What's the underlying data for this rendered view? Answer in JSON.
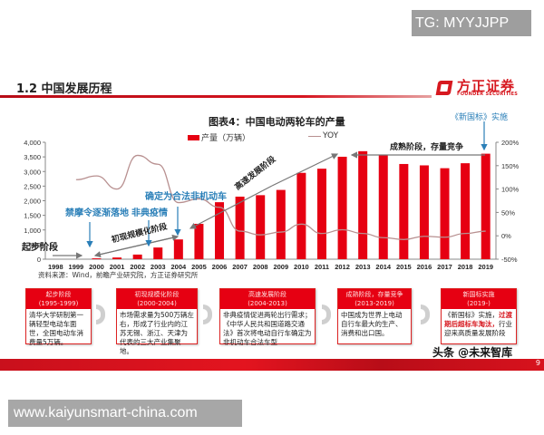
{
  "watermarks": {
    "top": "TG: MYYJJPP",
    "bottom_right": "头条 @未来智库",
    "url": "www.kaiyunsmart-china.com"
  },
  "header": {
    "section_title": "1.2 中国发展历程",
    "logo_cn": "方正证券",
    "logo_en": "FOUNDER SECURITIES",
    "accent": "#d71920"
  },
  "chart_data": {
    "type": "bar",
    "title": "图表4：中国电动两轮车的产量",
    "categories": [
      "1998",
      "1999",
      "2000",
      "2001",
      "2002",
      "2003",
      "2004",
      "2005",
      "2006",
      "2007",
      "2008",
      "2009",
      "2010",
      "2011",
      "2012",
      "2013",
      "2014",
      "2015",
      "2016",
      "2017",
      "2018",
      "2019"
    ],
    "series": [
      {
        "name": "产量（万辆）",
        "type": "bar",
        "axis": "left",
        "color": "#e60012",
        "values": [
          0,
          0,
          29,
          58,
          158,
          400,
          676,
          1210,
          1950,
          2140,
          2190,
          2370,
          2954,
          3096,
          3505,
          3695,
          3551,
          3257,
          3210,
          3113,
          3283,
          3609
        ]
      },
      {
        "name": "YOY",
        "type": "line",
        "axis": "right",
        "color": "#b89090",
        "values": [
          null,
          120,
          128,
          100,
          172,
          153,
          71,
          79,
          61,
          10,
          2,
          8,
          25,
          5,
          13,
          5,
          -4,
          -8,
          -1,
          -3,
          5,
          10
        ]
      }
    ],
    "left_axis": {
      "min": 0,
      "max": 4000,
      "ticks": [
        "0",
        "500",
        "1,000",
        "1,500",
        "2,000",
        "2,500",
        "3,000",
        "3,500",
        "4,000"
      ]
    },
    "right_axis": {
      "min": -50,
      "max": 200,
      "ticks": [
        "-50%",
        "0%",
        "50%",
        "100%",
        "150%",
        "200%"
      ]
    },
    "legend": [
      "产量（万辆）",
      "YOY"
    ],
    "legend_position": "top",
    "grid": false,
    "annotations": {
      "stage_start": "起步阶段",
      "stage_initial": "初现规模化阶段",
      "stage_fast": "高速发展阶段",
      "stage_mature": "成熟阶段，存量竞争",
      "event_ban": "禁摩令逐渐落地",
      "event_sars": "非典疫情",
      "event_legal": "确定为合法非机动车",
      "event_standard": "《新国标》实施"
    },
    "source": "资料来源：Wind，前瞻产业研究院，方正证券研究所"
  },
  "stages": [
    {
      "title": "起步阶段",
      "period": "(1995-1999)",
      "text": "清华大学研制第一辆轻型电动车面世，全国电动车消费量5万辆。"
    },
    {
      "title": "初现规模化阶段",
      "period": "(2000-2004)",
      "text": "市场需求量为500万辆左右，形成了行业内的江苏无锡、浙江、天津为代表的三大产业集聚地。"
    },
    {
      "title": "高速发展阶段",
      "period": "(2004-2013)",
      "text": "非典疫情促进两轮出行需求；《中华人民共和国道路交通法》首次将电动自行车确定为非机动车合法车型"
    },
    {
      "title": "成熟阶段，存量竞争",
      "period": "(2013-2019)",
      "text": "中国成为世界上电动自行车最大的生产、消费和出口国。"
    },
    {
      "title": "新国标实施",
      "period": "(2019-)",
      "text_pre": "《新国标》实施，",
      "text_hl": "过渡期后超标车淘汰，",
      "text_post": "行业迎来高质量发展阶段"
    }
  ],
  "footer": {
    "page_number": "9"
  }
}
